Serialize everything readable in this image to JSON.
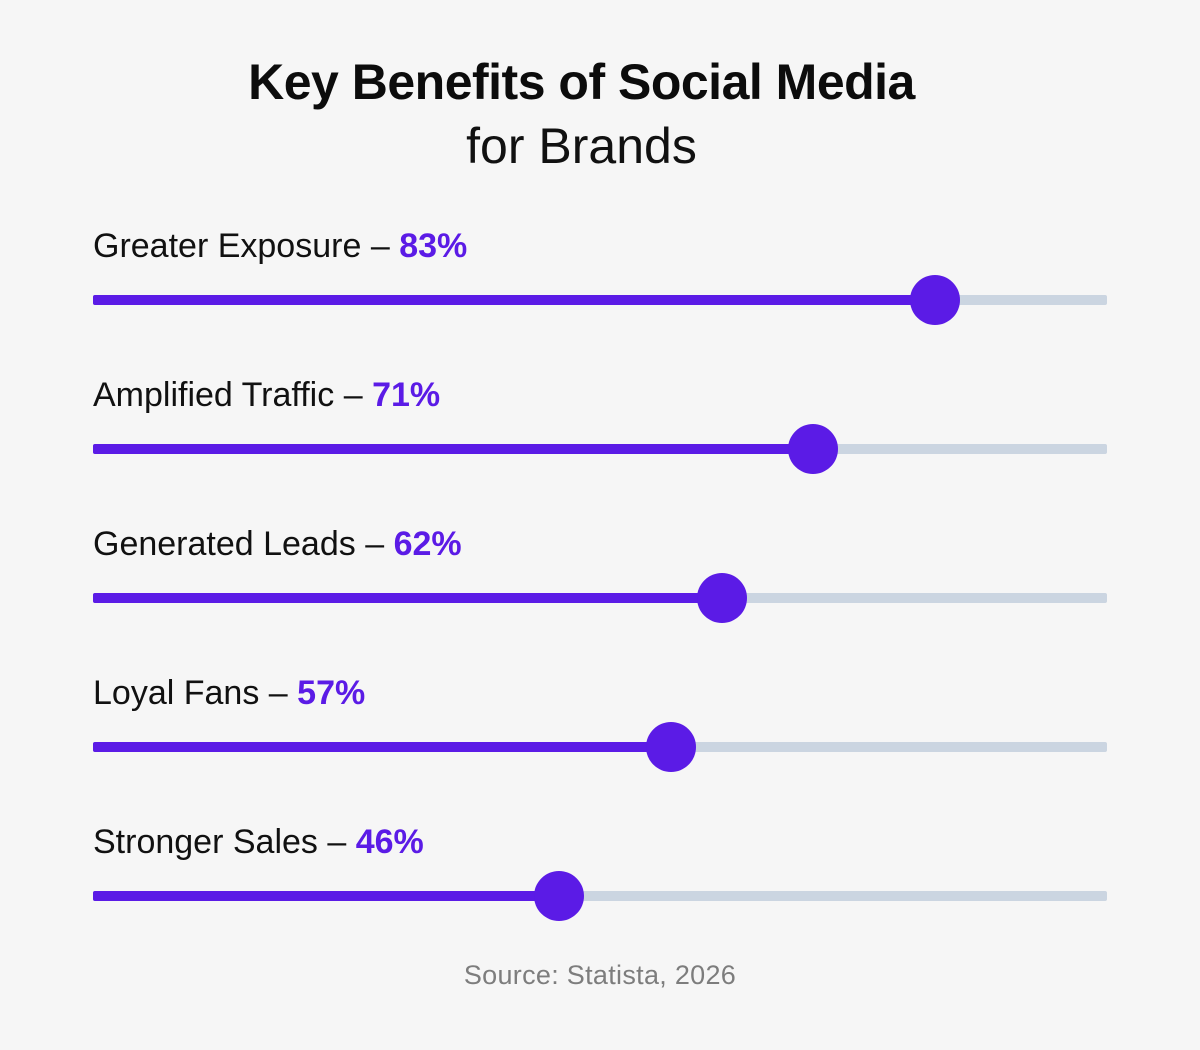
{
  "title": {
    "line1": "Key Benefits of Social Media",
    "line2": "for Brands"
  },
  "source": "Source:  Statista, 2026",
  "colors": {
    "accent": "#5b1be6",
    "track": "#cbd5e1",
    "background": "#f6f6f6",
    "source_text": "#7d7d7d"
  },
  "chart_data": {
    "type": "bar",
    "title": "Key Benefits of Social Media for Brands",
    "xlim": [
      0,
      100
    ],
    "unit": "%",
    "grid": false,
    "categories": [
      "Greater Exposure",
      "Amplified Traffic",
      "Generated Leads",
      "Loyal Fans",
      "Stronger Sales"
    ],
    "values": [
      83,
      71,
      62,
      57,
      46
    ],
    "value_labels": [
      "83%",
      "71%",
      "62%",
      "57%",
      "46%"
    ],
    "separator": "–"
  }
}
